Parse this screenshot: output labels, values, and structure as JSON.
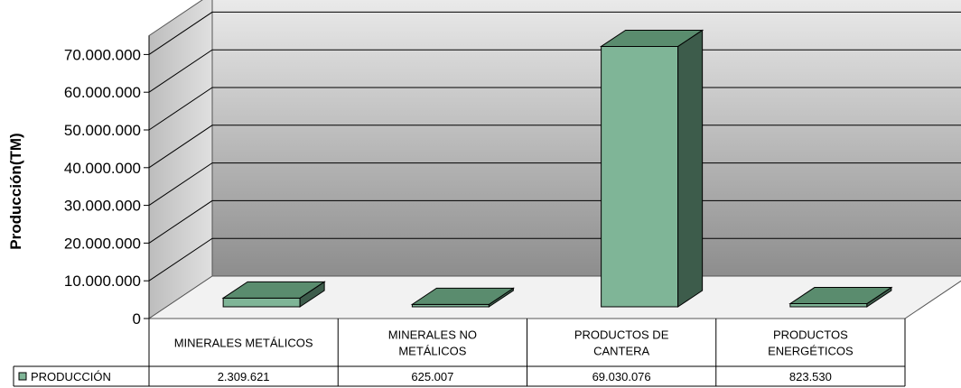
{
  "chart_data": {
    "type": "bar",
    "title": "",
    "xlabel": "",
    "ylabel": "Producción(TM)",
    "ylim": [
      0,
      75000000
    ],
    "yticks": [
      "0",
      "10.000.000",
      "20.000.000",
      "30.000.000",
      "40.000.000",
      "50.000.000",
      "60.000.000",
      "70.000.000"
    ],
    "grid": true,
    "three_d": true,
    "categories": [
      [
        "MINERALES METÁLICOS"
      ],
      [
        "MINERALES NO",
        "METÁLICOS"
      ],
      [
        "PRODUCTOS DE",
        "CANTERA"
      ],
      [
        "PRODUCTOS",
        "ENERGÉTICOS"
      ]
    ],
    "series": [
      {
        "name": "PRODUCCIÓN",
        "values": [
          2309621,
          625007,
          69030076,
          823530
        ],
        "value_labels": [
          "2.309.621",
          "625.007",
          "69.030.076",
          "823.530"
        ],
        "color": "#7fb597",
        "top_color": "#5a8c6e",
        "side_color": "#3d5c4b"
      }
    ],
    "legend": "data-table-left",
    "colors": {
      "wall_top": "#ececec",
      "wall_bottom": "#8d8d8d",
      "floor": "#f2f2f2",
      "side_wall": "#c8c8c8"
    }
  }
}
